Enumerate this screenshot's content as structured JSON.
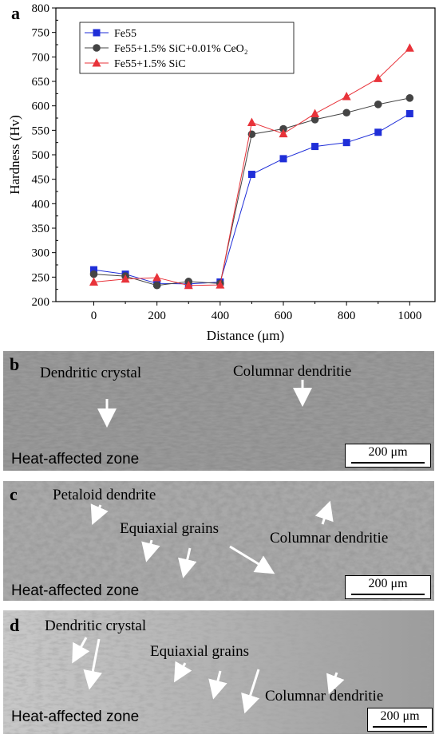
{
  "chart_data": {
    "panel_label": "a",
    "type": "line",
    "xlabel": "Distance (μm)",
    "ylabel": "Hardness (Hv)",
    "xlim": [
      -120,
      1080
    ],
    "ylim": [
      200,
      800
    ],
    "xticks": [
      0,
      200,
      400,
      600,
      800,
      1000
    ],
    "yticks": [
      200,
      250,
      300,
      350,
      400,
      450,
      500,
      550,
      600,
      650,
      700,
      750,
      800
    ],
    "x": [
      0,
      100,
      200,
      300,
      400,
      500,
      600,
      700,
      800,
      900,
      1000
    ],
    "legend_position": "top-left",
    "series": [
      {
        "name": "Fe55",
        "color": "#1f2ed8",
        "marker": "square",
        "values": [
          265,
          256,
          237,
          236,
          240,
          460,
          492,
          517,
          525,
          546,
          584
        ]
      },
      {
        "name": "Fe55+1.5% SiC+0.01% CeO₂",
        "color": "#444444",
        "marker": "circle",
        "values": [
          256,
          252,
          233,
          241,
          237,
          542,
          553,
          572,
          586,
          603,
          616
        ]
      },
      {
        "name": "Fe55+1.5% SiC",
        "color": "#e8333a",
        "marker": "triangle",
        "values": [
          240,
          246,
          249,
          233,
          234,
          566,
          543,
          584,
          619,
          656,
          718
        ]
      }
    ]
  },
  "panels": [
    {
      "label": "b",
      "annotations": [
        "Dendritic crystal",
        "Columnar dendritie"
      ],
      "zone_label": "Heat-affected zone",
      "scale_bar": "200 μm"
    },
    {
      "label": "c",
      "annotations": [
        "Petaloid dendrite",
        "Equiaxial grains",
        "Columnar dendritie"
      ],
      "zone_label": "Heat-affected zone",
      "scale_bar": "200 μm"
    },
    {
      "label": "d",
      "annotations": [
        "Dendritic crystal",
        "Equiaxial grains",
        "Columnar dendritie"
      ],
      "zone_label": "Heat-affected zone",
      "scale_bar": "200 μm"
    }
  ]
}
